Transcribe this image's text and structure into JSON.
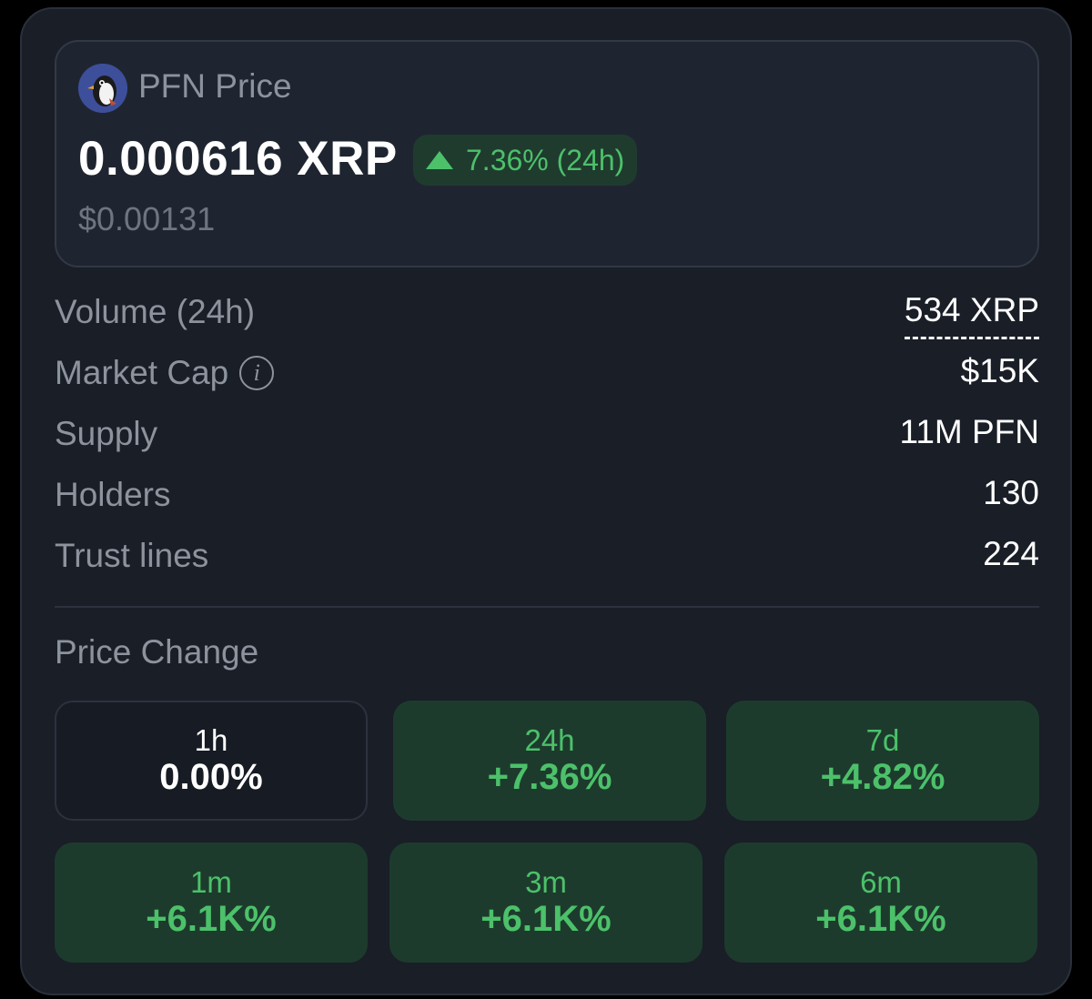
{
  "token": {
    "title": "PFN Price",
    "price": "0.000616 XRP",
    "change_24h": "7.36% (24h)",
    "price_usd": "$0.00131",
    "logo_icon": "penguin-logo-icon"
  },
  "stats": [
    {
      "label": "Volume (24h)",
      "value": "534 XRP"
    },
    {
      "label": "Market Cap",
      "value": "$15K"
    },
    {
      "label": "Supply",
      "value": "11M PFN"
    },
    {
      "label": "Holders",
      "value": "130"
    },
    {
      "label": "Trust lines",
      "value": "224"
    }
  ],
  "price_change": {
    "title": "Price Change",
    "tiles": [
      {
        "period": "1h",
        "value": "0.00%"
      },
      {
        "period": "24h",
        "value": "+7.36%"
      },
      {
        "period": "7d",
        "value": "+4.82%"
      },
      {
        "period": "1m",
        "value": "+6.1K%"
      },
      {
        "period": "3m",
        "value": "+6.1K%"
      },
      {
        "period": "6m",
        "value": "+6.1K%"
      }
    ]
  },
  "colors": {
    "positive": "#4cc16a",
    "card_bg": "#191e27",
    "positive_tile_bg": "#1d3b2d"
  }
}
